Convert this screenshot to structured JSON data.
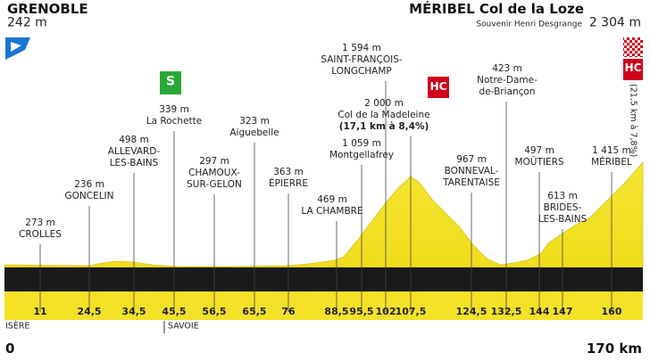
{
  "header": {
    "start_name": "GRENOBLE",
    "start_altitude": "242 m",
    "finish_name": "MÉRIBEL Col de la Loze",
    "finish_subtitle": "Souvenir Henri Desgrange",
    "finish_altitude": "2 304 m",
    "sprint_badge": "S",
    "climb_badge": "HC",
    "finish_badge": "HC",
    "finish_climb": "(21,5 km à 7,8%)"
  },
  "waypoints": [
    {
      "altitude": "273 m",
      "name": [
        "CROLLES"
      ],
      "km": "11"
    },
    {
      "altitude": "236 m",
      "name": [
        "GONCELIN"
      ],
      "km": "24,5"
    },
    {
      "altitude": "498 m",
      "name": [
        "ALLEVARD-",
        "LES-BAINS"
      ],
      "km": "34,5"
    },
    {
      "altitude": "339 m",
      "name": [
        "La Rochette"
      ],
      "km": "45,5"
    },
    {
      "altitude": "297 m",
      "name": [
        "CHAMOUX-",
        "SUR-GELON"
      ],
      "km": "56,5"
    },
    {
      "altitude": "323 m",
      "name": [
        "Aiguebelle"
      ],
      "km": "65,5"
    },
    {
      "altitude": "363 m",
      "name": [
        "ÉPIERRE"
      ],
      "km": "76"
    },
    {
      "altitude": "469 m",
      "name": [
        "LA CHAMBRE"
      ],
      "km": "88,5"
    },
    {
      "altitude": "1 059 m",
      "name": [
        "Montgellafrey"
      ],
      "km": "95,5"
    },
    {
      "altitude": "1 594 m",
      "name": [
        "SAINT-FRANÇOIS-",
        "LONGCHAMP"
      ],
      "km": "102"
    },
    {
      "altitude": "2 000 m",
      "name": [
        "Col de la Madeleine",
        "(17,1 km à 8,4%)"
      ],
      "km": "107,5"
    },
    {
      "altitude": "967 m",
      "name": [
        "BONNEVAL-",
        "TARENTAISE"
      ],
      "km": "124,5"
    },
    {
      "altitude": "423 m",
      "name": [
        "Notre-Dame-",
        "de-Briançon"
      ],
      "km": "132,5"
    },
    {
      "altitude": "497 m",
      "name": [
        "MOÛTIERS"
      ],
      "km": "144"
    },
    {
      "altitude": "613 m",
      "name": [
        "BRIDES-",
        "LES-BAINS"
      ],
      "km": "147"
    },
    {
      "altitude": "1 415 m",
      "name": [
        "MÉRIBEL"
      ],
      "km": "160"
    }
  ],
  "regions": [
    "ISÈRE",
    "SAVOIE"
  ],
  "distance": {
    "start": "0",
    "end": "170 km"
  }
}
